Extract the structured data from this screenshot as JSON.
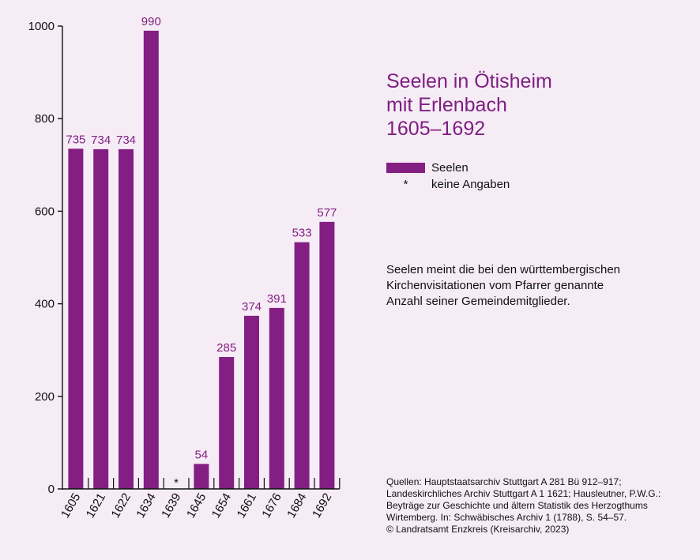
{
  "title_lines": [
    "Seelen in Ötisheim",
    "mit Erlenbach",
    "1605–1692"
  ],
  "legend": {
    "series_label": "Seelen",
    "missing_symbol": "*",
    "missing_label": "keine Angaben"
  },
  "note_lines": [
    "Seelen meint die bei den württembergischen",
    "Kirchenvisitationen vom Pfarrer genannte",
    "Anzahl seiner Gemeindemitglieder."
  ],
  "sources_lines": [
    "Quellen: Hauptstaatsarchiv Stuttgart A 281 Bü 912–917;",
    "Landeskirchliches Archiv Stuttgart A 1 1621; Hausleutner, P.W.G.:",
    "Beyträge zur Geschichte und ältern Statistik des Herzogthums",
    "Wirtemberg. In: Schwäbisches Archiv 1 (1788), S. 54–57.",
    "© Landratsamt Enzkreis (Kreisarchiv, 2023)"
  ],
  "colors": {
    "bar": "#831f82",
    "value_label": "#831f82",
    "title": "#7d1f80",
    "background": "#f6ecf6",
    "axis": "#111111"
  },
  "chart_data": {
    "type": "bar",
    "categories": [
      "1605",
      "1621",
      "1622",
      "1634",
      "1639",
      "1645",
      "1654",
      "1661",
      "1676",
      "1684",
      "1692"
    ],
    "values": [
      735,
      734,
      734,
      990,
      null,
      54,
      285,
      374,
      391,
      533,
      577
    ],
    "value_labels": [
      "735",
      "734",
      "734",
      "990",
      "*",
      "54",
      "285",
      "374",
      "391",
      "533",
      "577"
    ],
    "ylim": [
      0,
      1000
    ],
    "yticks": [
      0,
      200,
      400,
      600,
      800,
      1000
    ],
    "ytick_labels": [
      "0",
      "200",
      "400",
      "600",
      "800",
      "1000"
    ],
    "grid": false,
    "legend_position": "right"
  }
}
